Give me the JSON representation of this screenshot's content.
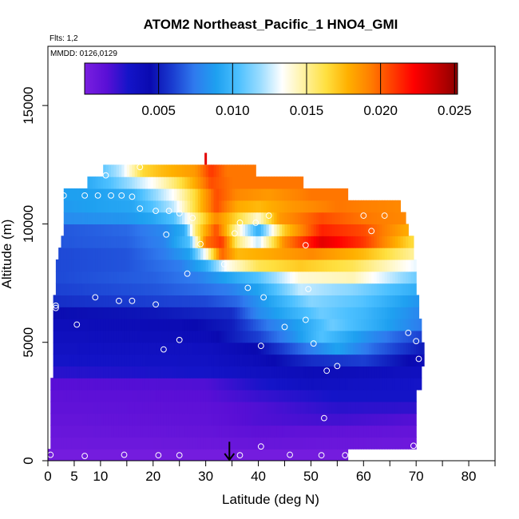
{
  "chart_data": {
    "type": "heatmap",
    "title": "ATOM2 Northeast_Pacific_1 HNO4_GMI",
    "annotations": {
      "flights": "Flts: 1,2",
      "dates": "MMDD: 0126,0129"
    },
    "xlabel": "Latitude (deg N)",
    "ylabel": "Altitude (m)",
    "xlim": [
      0,
      85
    ],
    "ylim": [
      0,
      17500
    ],
    "x_ticks": [
      0,
      5,
      10,
      20,
      30,
      40,
      50,
      60,
      70,
      80
    ],
    "x_tick_labels": [
      "0",
      "5",
      "10",
      "20",
      "30",
      "40",
      "50",
      "60",
      "70",
      "80"
    ],
    "x_minor_ticks": [
      15,
      25,
      35,
      45,
      55,
      65,
      75,
      85
    ],
    "y_ticks": [
      0,
      5000,
      10000,
      15000
    ],
    "y_tick_labels": [
      "0",
      "5000",
      "10000",
      "15000"
    ],
    "colorbar": {
      "min": 0.0,
      "max": 0.0252,
      "ticks": [
        0.005,
        0.01,
        0.015,
        0.02,
        0.025
      ],
      "tick_labels": [
        "0.005",
        "0.010",
        "0.015",
        "0.020",
        "0.025"
      ],
      "colors": [
        "#7a1fe0",
        "#5a0fd6",
        "#1414c8",
        "#0a0ab0",
        "#1a3cd0",
        "#2f7aee",
        "#1ea0f0",
        "#4cc0ff",
        "#9adcff",
        "#ffffff",
        "#fff2a0",
        "#ffe040",
        "#ffb000",
        "#ff8000",
        "#ff4000",
        "#ff0000",
        "#c80000",
        "#8b0000"
      ]
    },
    "colorbar_ticks_note": "",
    "layers": [
      {
        "alt": 250,
        "x0": 0,
        "x1": 57,
        "v": [
          [
            0,
            0.0003
          ],
          [
            57,
            0.0003
          ]
        ]
      },
      {
        "alt": 750,
        "x0": 0.5,
        "x1": 70,
        "v": [
          [
            0,
            0.0006
          ],
          [
            30,
            0.0007
          ],
          [
            40,
            0.0009
          ],
          [
            70,
            0.0006
          ]
        ]
      },
      {
        "alt": 1250,
        "x0": 0.5,
        "x1": 70,
        "v": [
          [
            0,
            0.0008
          ],
          [
            30,
            0.001
          ],
          [
            40,
            0.0013
          ],
          [
            70,
            0.001
          ]
        ]
      },
      {
        "alt": 1750,
        "x0": 0.5,
        "x1": 70,
        "v": [
          [
            0,
            0.001
          ],
          [
            30,
            0.0012
          ],
          [
            40,
            0.0017
          ],
          [
            55,
            0.002
          ],
          [
            70,
            0.0016
          ]
        ]
      },
      {
        "alt": 2250,
        "x0": 0.5,
        "x1": 70,
        "v": [
          [
            0,
            0.0012
          ],
          [
            30,
            0.0013
          ],
          [
            40,
            0.0017
          ],
          [
            55,
            0.0025
          ],
          [
            70,
            0.0024
          ]
        ]
      },
      {
        "alt": 2750,
        "x0": 0.5,
        "x1": 70,
        "v": [
          [
            0,
            0.0013
          ],
          [
            30,
            0.0015
          ],
          [
            40,
            0.0022
          ],
          [
            55,
            0.003
          ],
          [
            70,
            0.003
          ]
        ]
      },
      {
        "alt": 3250,
        "x0": 0.5,
        "x1": 71,
        "v": [
          [
            0,
            0.0015
          ],
          [
            30,
            0.0017
          ],
          [
            40,
            0.0028
          ],
          [
            50,
            0.0035
          ],
          [
            71,
            0.003
          ]
        ]
      },
      {
        "alt": 3750,
        "x0": 1,
        "x1": 71,
        "v": [
          [
            0,
            0.0025
          ],
          [
            30,
            0.003
          ],
          [
            40,
            0.0035
          ],
          [
            50,
            0.004
          ],
          [
            71,
            0.0035
          ]
        ]
      },
      {
        "alt": 4250,
        "x0": 1,
        "x1": 71.5,
        "v": [
          [
            0,
            0.003
          ],
          [
            30,
            0.0033
          ],
          [
            40,
            0.004
          ],
          [
            50,
            0.0055
          ],
          [
            60,
            0.006
          ],
          [
            71,
            0.004
          ]
        ]
      },
      {
        "alt": 4750,
        "x0": 1,
        "x1": 71.5,
        "v": [
          [
            0,
            0.0033
          ],
          [
            30,
            0.0035
          ],
          [
            40,
            0.0045
          ],
          [
            48,
            0.007
          ],
          [
            55,
            0.009
          ],
          [
            62,
            0.007
          ],
          [
            71,
            0.005
          ]
        ]
      },
      {
        "alt": 5250,
        "x0": 1,
        "x1": 71,
        "v": [
          [
            0,
            0.0035
          ],
          [
            30,
            0.004
          ],
          [
            40,
            0.006
          ],
          [
            46,
            0.008
          ],
          [
            52,
            0.0105
          ],
          [
            58,
            0.009
          ],
          [
            66,
            0.007
          ],
          [
            71,
            0.006
          ]
        ]
      },
      {
        "alt": 5750,
        "x0": 1,
        "x1": 71,
        "v": [
          [
            0,
            0.0038
          ],
          [
            25,
            0.0042
          ],
          [
            35,
            0.005
          ],
          [
            42,
            0.0075
          ],
          [
            48,
            0.009
          ],
          [
            54,
            0.011
          ],
          [
            62,
            0.0095
          ],
          [
            71,
            0.0075
          ]
        ]
      },
      {
        "alt": 6250,
        "x0": 1,
        "x1": 70.5,
        "v": [
          [
            0,
            0.0045
          ],
          [
            20,
            0.0048
          ],
          [
            35,
            0.0055
          ],
          [
            40,
            0.008
          ],
          [
            46,
            0.0095
          ],
          [
            52,
            0.011
          ],
          [
            60,
            0.01
          ],
          [
            70,
            0.008
          ]
        ]
      },
      {
        "alt": 6750,
        "x0": 1,
        "x1": 70.5,
        "v": [
          [
            0,
            0.0055
          ],
          [
            20,
            0.006
          ],
          [
            30,
            0.0062
          ],
          [
            36,
            0.007
          ],
          [
            42,
            0.009
          ],
          [
            50,
            0.0115
          ],
          [
            60,
            0.0105
          ],
          [
            70,
            0.0085
          ]
        ]
      },
      {
        "alt": 7250,
        "x0": 1.5,
        "x1": 70,
        "v": [
          [
            0,
            0.006
          ],
          [
            20,
            0.0065
          ],
          [
            28,
            0.007
          ],
          [
            34,
            0.0075
          ],
          [
            40,
            0.009
          ],
          [
            48,
            0.0125
          ],
          [
            58,
            0.0115
          ],
          [
            70,
            0.0095
          ]
        ]
      },
      {
        "alt": 7750,
        "x0": 1.5,
        "x1": 70,
        "v": [
          [
            0,
            0.0062
          ],
          [
            20,
            0.0068
          ],
          [
            28,
            0.0075
          ],
          [
            34,
            0.009
          ],
          [
            40,
            0.0105
          ],
          [
            48,
            0.014
          ],
          [
            58,
            0.0145
          ],
          [
            70,
            0.011
          ]
        ]
      },
      {
        "alt": 8250,
        "x0": 1.5,
        "x1": 70,
        "v": [
          [
            0,
            0.0062
          ],
          [
            15,
            0.0065
          ],
          [
            25,
            0.0075
          ],
          [
            30,
            0.0095
          ],
          [
            34,
            0.0135
          ],
          [
            40,
            0.016
          ],
          [
            48,
            0.017
          ],
          [
            58,
            0.016
          ],
          [
            70,
            0.013
          ]
        ]
      },
      {
        "alt": 8750,
        "x0": 2,
        "x1": 69.5,
        "v": [
          [
            0,
            0.0062
          ],
          [
            15,
            0.0065
          ],
          [
            22,
            0.0075
          ],
          [
            27,
            0.009
          ],
          [
            30,
            0.0135
          ],
          [
            33,
            0.02
          ],
          [
            36,
            0.0175
          ],
          [
            42,
            0.018
          ],
          [
            50,
            0.019
          ],
          [
            60,
            0.0175
          ],
          [
            69,
            0.015
          ]
        ]
      },
      {
        "alt": 9250,
        "x0": 2.5,
        "x1": 69.5,
        "v": [
          [
            0,
            0.0065
          ],
          [
            15,
            0.0068
          ],
          [
            22,
            0.0078
          ],
          [
            27,
            0.0105
          ],
          [
            30,
            0.0195
          ],
          [
            33,
            0.021
          ],
          [
            36,
            0.0155
          ],
          [
            40,
            0.0125
          ],
          [
            45,
            0.019
          ],
          [
            52,
            0.023
          ],
          [
            60,
            0.021
          ],
          [
            69,
            0.0165
          ]
        ]
      },
      {
        "alt": 9750,
        "x0": 3,
        "x1": 68.5,
        "v": [
          [
            0,
            0.0065
          ],
          [
            15,
            0.007
          ],
          [
            22,
            0.008
          ],
          [
            26,
            0.0095
          ],
          [
            28,
            0.0155
          ],
          [
            32,
            0.0205
          ],
          [
            36,
            0.0145
          ],
          [
            40,
            0.0095
          ],
          [
            45,
            0.017
          ],
          [
            52,
            0.0215
          ],
          [
            60,
            0.0205
          ],
          [
            68,
            0.018
          ]
        ]
      },
      {
        "alt": 10250,
        "x0": 3,
        "x1": 68,
        "v": [
          [
            0,
            0.008
          ],
          [
            15,
            0.0085
          ],
          [
            20,
            0.0092
          ],
          [
            24,
            0.0105
          ],
          [
            28,
            0.015
          ],
          [
            32,
            0.019
          ],
          [
            36,
            0.0165
          ],
          [
            40,
            0.014
          ],
          [
            44,
            0.0185
          ],
          [
            52,
            0.0205
          ],
          [
            60,
            0.0195
          ],
          [
            68,
            0.019
          ]
        ]
      },
      {
        "alt": 10750,
        "x0": 3,
        "x1": 67,
        "v": [
          [
            0,
            0.0085
          ],
          [
            10,
            0.009
          ],
          [
            16,
            0.0092
          ],
          [
            20,
            0.0105
          ],
          [
            24,
            0.0125
          ],
          [
            28,
            0.0165
          ],
          [
            32,
            0.0205
          ],
          [
            36,
            0.018
          ],
          [
            40,
            0.0175
          ],
          [
            46,
            0.0185
          ],
          [
            55,
            0.0195
          ],
          [
            67,
            0.019
          ]
        ]
      },
      {
        "alt": 11250,
        "x0": 3,
        "x1": 57,
        "v": [
          [
            0,
            0.0088
          ],
          [
            10,
            0.009
          ],
          [
            16,
            0.0095
          ],
          [
            20,
            0.0115
          ],
          [
            24,
            0.0135
          ],
          [
            28,
            0.0165
          ],
          [
            32,
            0.0205
          ],
          [
            36,
            0.019
          ],
          [
            42,
            0.0185
          ],
          [
            50,
            0.0195
          ],
          [
            57,
            0.0195
          ]
        ]
      },
      {
        "alt": 11750,
        "x0": 7.5,
        "x1": 48.5,
        "v": [
          [
            7,
            0.0092
          ],
          [
            12,
            0.0105
          ],
          [
            16,
            0.012
          ],
          [
            20,
            0.0135
          ],
          [
            24,
            0.0155
          ],
          [
            28,
            0.018
          ],
          [
            31,
            0.0205
          ],
          [
            35,
            0.0195
          ],
          [
            42,
            0.0195
          ],
          [
            48,
            0.0195
          ]
        ]
      },
      {
        "alt": 12250,
        "x0": 10.5,
        "x1": 39.5,
        "v": [
          [
            10,
            0.0105
          ],
          [
            14,
            0.0125
          ],
          [
            18,
            0.0165
          ],
          [
            22,
            0.0175
          ],
          [
            28,
            0.0185
          ],
          [
            31,
            0.021
          ],
          [
            34,
            0.0195
          ],
          [
            39,
            0.0195
          ]
        ]
      }
    ],
    "spike": {
      "lat": 30,
      "alt0": 12500,
      "alt1": 13000,
      "value": 0.023
    },
    "flight_points": [
      [
        0.5,
        250
      ],
      [
        7,
        200
      ],
      [
        14.5,
        250
      ],
      [
        21,
        230
      ],
      [
        25,
        230
      ],
      [
        36.5,
        230
      ],
      [
        46,
        250
      ],
      [
        52,
        230
      ],
      [
        56.5,
        230
      ],
      [
        40.5,
        600
      ],
      [
        69.5,
        630
      ],
      [
        52.5,
        1800
      ],
      [
        53,
        3800
      ],
      [
        55,
        4000
      ],
      [
        70.5,
        4300
      ],
      [
        22,
        4700
      ],
      [
        40.5,
        4850
      ],
      [
        50.5,
        4950
      ],
      [
        25,
        5100
      ],
      [
        70,
        5050
      ],
      [
        68.5,
        5400
      ],
      [
        45,
        5650
      ],
      [
        49,
        5950
      ],
      [
        5.5,
        5750
      ],
      [
        1.5,
        6450
      ],
      [
        1.5,
        6550
      ],
      [
        13.5,
        6750
      ],
      [
        16,
        6750
      ],
      [
        9,
        6900
      ],
      [
        20.5,
        6600
      ],
      [
        41,
        6900
      ],
      [
        38,
        7300
      ],
      [
        49.5,
        7250
      ],
      [
        26.5,
        7900
      ],
      [
        33.5,
        8300
      ],
      [
        29,
        9150
      ],
      [
        49,
        9100
      ],
      [
        22.5,
        9550
      ],
      [
        35.5,
        9600
      ],
      [
        36.5,
        10050
      ],
      [
        39.5,
        10050
      ],
      [
        42,
        10350
      ],
      [
        60,
        10350
      ],
      [
        61.5,
        9700
      ],
      [
        27.5,
        10250
      ],
      [
        64,
        10350
      ],
      [
        20.5,
        10550
      ],
      [
        23,
        10550
      ],
      [
        25,
        10450
      ],
      [
        17.5,
        10650
      ],
      [
        3,
        11200
      ],
      [
        7,
        11200
      ],
      [
        9.5,
        11200
      ],
      [
        12,
        11200
      ],
      [
        14,
        11200
      ],
      [
        16,
        11150
      ],
      [
        69.5,
        10950
      ],
      [
        11,
        12050
      ],
      [
        17.5,
        12400
      ]
    ],
    "arrow": {
      "lat": 34.5,
      "alt_top": 800,
      "alt_bottom": 0
    }
  }
}
